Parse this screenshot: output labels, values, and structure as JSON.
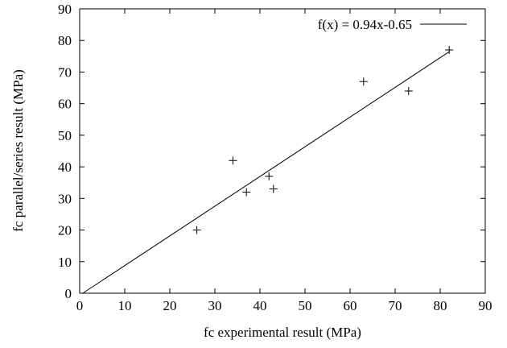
{
  "chart_data": {
    "type": "scatter",
    "title": "",
    "xlabel": "fc experimental result (MPa)",
    "ylabel": "fc parallel/series result (MPa)",
    "xlim": [
      0,
      90
    ],
    "ylim": [
      0,
      90
    ],
    "xticks": [
      "0",
      "10",
      "20",
      "30",
      "40",
      "50",
      "60",
      "70",
      "80",
      "90"
    ],
    "yticks": [
      "0",
      "10",
      "20",
      "30",
      "40",
      "50",
      "60",
      "70",
      "80",
      "90"
    ],
    "grid": false,
    "legend_position": "top-right",
    "marker": "plus",
    "points": [
      {
        "x": 26,
        "y": 20
      },
      {
        "x": 34,
        "y": 42
      },
      {
        "x": 37,
        "y": 32
      },
      {
        "x": 42,
        "y": 37
      },
      {
        "x": 43,
        "y": 33
      },
      {
        "x": 63,
        "y": 67
      },
      {
        "x": 73,
        "y": 64
      },
      {
        "x": 82,
        "y": 77
      }
    ],
    "fit": {
      "label": "f(x) = 0.94x-0.65",
      "slope": 0.94,
      "intercept": -0.65,
      "x_range": [
        0,
        82
      ]
    }
  }
}
